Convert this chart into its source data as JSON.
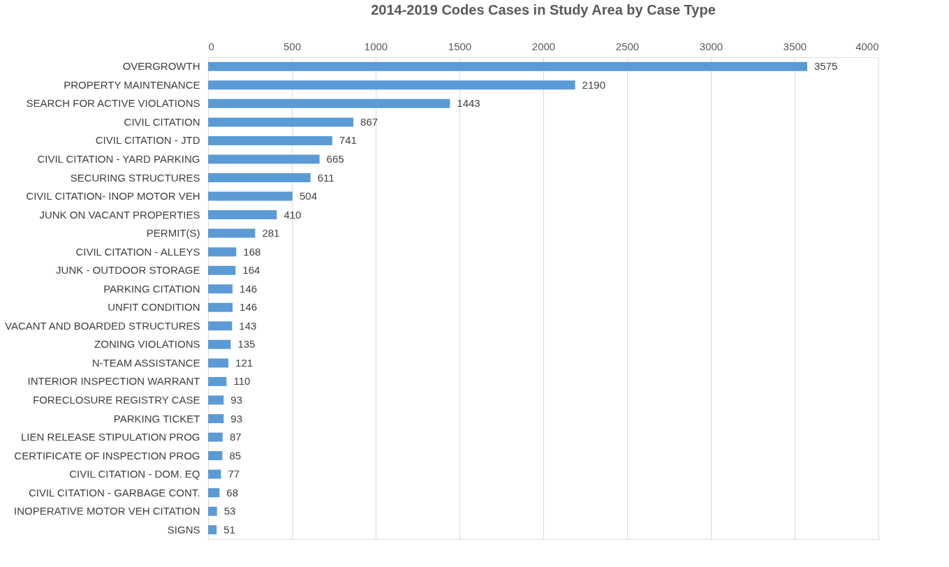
{
  "chart_data": {
    "type": "bar",
    "orientation": "horizontal",
    "title": "2014-2019 Codes Cases in Study Area by Case Type",
    "categories": [
      "OVERGROWTH",
      "PROPERTY MAINTENANCE",
      "SEARCH FOR ACTIVE VIOLATIONS",
      "CIVIL CITATION",
      "CIVIL CITATION - JTD",
      "CIVIL CITATION - YARD PARKING",
      "SECURING STRUCTURES",
      "CIVIL CITATION- INOP MOTOR VEH",
      "JUNK ON VACANT PROPERTIES",
      "PERMIT(S)",
      "CIVIL CITATION - ALLEYS",
      "JUNK - OUTDOOR STORAGE",
      "PARKING CITATION",
      "UNFIT CONDITION",
      "VACANT AND BOARDED STRUCTURES",
      "ZONING VIOLATIONS",
      "N-TEAM ASSISTANCE",
      "INTERIOR INSPECTION WARRANT",
      "FORECLOSURE REGISTRY CASE",
      "PARKING TICKET",
      "LIEN RELEASE STIPULATION PROG",
      "CERTIFICATE OF INSPECTION PROG",
      "CIVIL CITATION - DOM. EQ",
      "CIVIL CITATION - GARBAGE CONT.",
      "INOPERATIVE MOTOR VEH CITATION",
      "SIGNS"
    ],
    "values": [
      3575,
      2190,
      1443,
      867,
      741,
      665,
      611,
      504,
      410,
      281,
      168,
      164,
      146,
      146,
      143,
      135,
      121,
      110,
      93,
      93,
      87,
      85,
      77,
      68,
      53,
      51
    ],
    "color": "#5b9bd5",
    "xlim": [
      0,
      4000
    ],
    "xticks": [
      0,
      500,
      1000,
      1500,
      2000,
      2500,
      3000,
      3500,
      4000
    ],
    "grid": "x",
    "data_labels": true
  }
}
